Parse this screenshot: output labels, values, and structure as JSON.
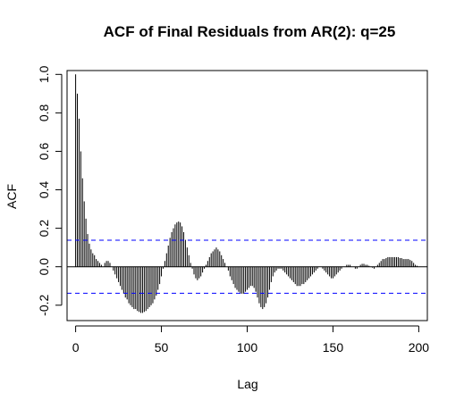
{
  "chart_data": {
    "type": "bar",
    "title": "ACF of Final Residuals from AR(2): q=25",
    "xlabel": "Lag",
    "ylabel": "ACF",
    "xlim": [
      -5,
      205
    ],
    "ylim": [
      -0.28,
      1.02
    ],
    "x_ticks": [
      "0",
      "50",
      "100",
      "150",
      "200"
    ],
    "y_ticks": [
      "-0.2",
      "0.0",
      "0.2",
      "0.4",
      "0.6",
      "0.8",
      "1.0"
    ],
    "confidence_bound": 0.138,
    "confidence_line_color": "#0000ff",
    "bar_color": "#000000",
    "lags": [
      0,
      1,
      2,
      3,
      4,
      5,
      6,
      7,
      8,
      9,
      10,
      11,
      12,
      13,
      14,
      15,
      16,
      17,
      18,
      19,
      20,
      21,
      22,
      23,
      24,
      25,
      26,
      27,
      28,
      29,
      30,
      31,
      32,
      33,
      34,
      35,
      36,
      37,
      38,
      39,
      40,
      41,
      42,
      43,
      44,
      45,
      46,
      47,
      48,
      49,
      50,
      51,
      52,
      53,
      54,
      55,
      56,
      57,
      58,
      59,
      60,
      61,
      62,
      63,
      64,
      65,
      66,
      67,
      68,
      69,
      70,
      71,
      72,
      73,
      74,
      75,
      76,
      77,
      78,
      79,
      80,
      81,
      82,
      83,
      84,
      85,
      86,
      87,
      88,
      89,
      90,
      91,
      92,
      93,
      94,
      95,
      96,
      97,
      98,
      99,
      100,
      101,
      102,
      103,
      104,
      105,
      106,
      107,
      108,
      109,
      110,
      111,
      112,
      113,
      114,
      115,
      116,
      117,
      118,
      119,
      120,
      121,
      122,
      123,
      124,
      125,
      126,
      127,
      128,
      129,
      130,
      131,
      132,
      133,
      134,
      135,
      136,
      137,
      138,
      139,
      140,
      141,
      142,
      143,
      144,
      145,
      146,
      147,
      148,
      149,
      150,
      151,
      152,
      153,
      154,
      155,
      156,
      157,
      158,
      159,
      160,
      161,
      162,
      163,
      164,
      165,
      166,
      167,
      168,
      169,
      170,
      171,
      172,
      173,
      174,
      175,
      176,
      177,
      178,
      179,
      180,
      181,
      182,
      183,
      184,
      185,
      186,
      187,
      188,
      189,
      190,
      191,
      192,
      193,
      194,
      195,
      196,
      197,
      198,
      199,
      200
    ],
    "values": [
      1.0,
      0.9,
      0.77,
      0.6,
      0.46,
      0.34,
      0.25,
      0.17,
      0.12,
      0.09,
      0.07,
      0.06,
      0.04,
      0.03,
      0.02,
      0.01,
      0.0,
      0.02,
      0.03,
      0.03,
      0.02,
      0.0,
      -0.02,
      -0.04,
      -0.06,
      -0.08,
      -0.1,
      -0.12,
      -0.14,
      -0.16,
      -0.17,
      -0.19,
      -0.2,
      -0.21,
      -0.22,
      -0.22,
      -0.23,
      -0.235,
      -0.24,
      -0.24,
      -0.235,
      -0.23,
      -0.22,
      -0.21,
      -0.2,
      -0.19,
      -0.17,
      -0.15,
      -0.12,
      -0.09,
      -0.05,
      -0.01,
      0.03,
      0.07,
      0.11,
      0.15,
      0.18,
      0.2,
      0.22,
      0.23,
      0.235,
      0.23,
      0.21,
      0.18,
      0.14,
      0.1,
      0.06,
      0.02,
      -0.01,
      -0.04,
      -0.06,
      -0.07,
      -0.06,
      -0.05,
      -0.03,
      -0.01,
      0.01,
      0.03,
      0.05,
      0.07,
      0.08,
      0.09,
      0.1,
      0.09,
      0.08,
      0.06,
      0.04,
      0.02,
      0.0,
      -0.02,
      -0.05,
      -0.07,
      -0.09,
      -0.11,
      -0.12,
      -0.13,
      -0.14,
      -0.14,
      -0.14,
      -0.13,
      -0.12,
      -0.11,
      -0.1,
      -0.1,
      -0.11,
      -0.13,
      -0.16,
      -0.19,
      -0.21,
      -0.22,
      -0.21,
      -0.19,
      -0.16,
      -0.12,
      -0.08,
      -0.05,
      -0.03,
      -0.02,
      -0.01,
      -0.01,
      -0.01,
      -0.02,
      -0.03,
      -0.04,
      -0.05,
      -0.06,
      -0.07,
      -0.08,
      -0.09,
      -0.1,
      -0.1,
      -0.1,
      -0.09,
      -0.09,
      -0.08,
      -0.07,
      -0.06,
      -0.05,
      -0.04,
      -0.03,
      -0.02,
      -0.01,
      0.0,
      0.0,
      -0.01,
      -0.02,
      -0.03,
      -0.04,
      -0.05,
      -0.06,
      -0.06,
      -0.05,
      -0.04,
      -0.03,
      -0.02,
      -0.01,
      0.0,
      0.0,
      0.01,
      0.01,
      0.01,
      0.0,
      0.0,
      -0.01,
      -0.01,
      0.0,
      0.01,
      0.015,
      0.015,
      0.01,
      0.01,
      0.005,
      0.0,
      -0.005,
      -0.01,
      0.0,
      0.01,
      0.02,
      0.03,
      0.04,
      0.04,
      0.045,
      0.05,
      0.05,
      0.05,
      0.05,
      0.05,
      0.05,
      0.05,
      0.045,
      0.045,
      0.04,
      0.04,
      0.04,
      0.04,
      0.035,
      0.03,
      0.02,
      0.01,
      0.005,
      0.0
    ]
  }
}
